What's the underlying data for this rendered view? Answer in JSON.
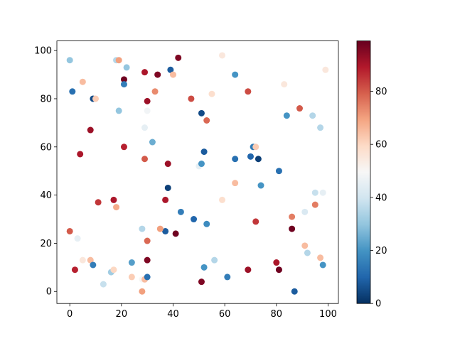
{
  "chart_data": {
    "type": "scatter",
    "title": "",
    "xlabel": "",
    "ylabel": "",
    "xlim": [
      -5,
      104
    ],
    "ylim": [
      -5,
      104
    ],
    "xticks": [
      0,
      20,
      40,
      60,
      80,
      100
    ],
    "yticks": [
      0,
      20,
      40,
      60,
      80,
      100
    ],
    "grid": false,
    "colormap": "RdBu_r",
    "colorbar": {
      "min": 0,
      "max": 99,
      "ticks": [
        0,
        20,
        40,
        60,
        80
      ]
    },
    "colormap_stops": [
      {
        "v": 0.0,
        "color": "#053061"
      },
      {
        "v": 0.1,
        "color": "#2166ac"
      },
      {
        "v": 0.2,
        "color": "#4393c3"
      },
      {
        "v": 0.3,
        "color": "#92c5de"
      },
      {
        "v": 0.4,
        "color": "#d1e5f0"
      },
      {
        "v": 0.5,
        "color": "#f7f7f7"
      },
      {
        "v": 0.6,
        "color": "#fddbc7"
      },
      {
        "v": 0.7,
        "color": "#f4a582"
      },
      {
        "v": 0.8,
        "color": "#d6604d"
      },
      {
        "v": 0.9,
        "color": "#b2182b"
      },
      {
        "v": 1.0,
        "color": "#67001f"
      }
    ],
    "points": [
      {
        "x": 0,
        "y": 96,
        "c": 30
      },
      {
        "x": 1,
        "y": 83,
        "c": 12
      },
      {
        "x": 5,
        "y": 87,
        "c": 65
      },
      {
        "x": 9,
        "y": 80,
        "c": 5
      },
      {
        "x": 10,
        "y": 80,
        "c": 62
      },
      {
        "x": 8,
        "y": 67,
        "c": 92
      },
      {
        "x": 4,
        "y": 57,
        "c": 90
      },
      {
        "x": 0,
        "y": 25,
        "c": 80
      },
      {
        "x": 3,
        "y": 22,
        "c": 45
      },
      {
        "x": 2,
        "y": 9,
        "c": 88
      },
      {
        "x": 5,
        "y": 13,
        "c": 55
      },
      {
        "x": 8,
        "y": 13,
        "c": 65
      },
      {
        "x": 9,
        "y": 11,
        "c": 15
      },
      {
        "x": 13,
        "y": 3,
        "c": 38
      },
      {
        "x": 16,
        "y": 8,
        "c": 32
      },
      {
        "x": 17,
        "y": 9,
        "c": 60
      },
      {
        "x": 11,
        "y": 37,
        "c": 85
      },
      {
        "x": 17,
        "y": 38,
        "c": 90
      },
      {
        "x": 18,
        "y": 35,
        "c": 68
      },
      {
        "x": 18,
        "y": 96,
        "c": 35
      },
      {
        "x": 19,
        "y": 96,
        "c": 70
      },
      {
        "x": 22,
        "y": 93,
        "c": 30
      },
      {
        "x": 21,
        "y": 88,
        "c": 98
      },
      {
        "x": 21,
        "y": 86,
        "c": 15
      },
      {
        "x": 19,
        "y": 75,
        "c": 30
      },
      {
        "x": 21,
        "y": 60,
        "c": 88
      },
      {
        "x": 29,
        "y": 91,
        "c": 90
      },
      {
        "x": 34,
        "y": 90,
        "c": 96
      },
      {
        "x": 30,
        "y": 79,
        "c": 92
      },
      {
        "x": 33,
        "y": 83,
        "c": 73
      },
      {
        "x": 30,
        "y": 75,
        "c": 48
      },
      {
        "x": 29,
        "y": 68,
        "c": 45
      },
      {
        "x": 32,
        "y": 62,
        "c": 25
      },
      {
        "x": 29,
        "y": 55,
        "c": 80
      },
      {
        "x": 39,
        "y": 92,
        "c": 8
      },
      {
        "x": 40,
        "y": 90,
        "c": 65
      },
      {
        "x": 42,
        "y": 97,
        "c": 96
      },
      {
        "x": 38,
        "y": 53,
        "c": 92
      },
      {
        "x": 38,
        "y": 43,
        "c": 3
      },
      {
        "x": 37,
        "y": 38,
        "c": 90
      },
      {
        "x": 43,
        "y": 33,
        "c": 15
      },
      {
        "x": 47,
        "y": 80,
        "c": 82
      },
      {
        "x": 51,
        "y": 74,
        "c": 5
      },
      {
        "x": 53,
        "y": 71,
        "c": 78
      },
      {
        "x": 55,
        "y": 82,
        "c": 58
      },
      {
        "x": 59,
        "y": 98,
        "c": 55
      },
      {
        "x": 52,
        "y": 58,
        "c": 8
      },
      {
        "x": 50,
        "y": 52,
        "c": 45
      },
      {
        "x": 51,
        "y": 53,
        "c": 20
      },
      {
        "x": 37,
        "y": 25,
        "c": 8
      },
      {
        "x": 41,
        "y": 24,
        "c": 98
      },
      {
        "x": 35,
        "y": 26,
        "c": 70
      },
      {
        "x": 28,
        "y": 26,
        "c": 35
      },
      {
        "x": 30,
        "y": 21,
        "c": 78
      },
      {
        "x": 24,
        "y": 12,
        "c": 22
      },
      {
        "x": 30,
        "y": 13,
        "c": 96
      },
      {
        "x": 24,
        "y": 6,
        "c": 62
      },
      {
        "x": 28,
        "y": 5,
        "c": 50
      },
      {
        "x": 29,
        "y": 5,
        "c": 65
      },
      {
        "x": 30,
        "y": 6,
        "c": 12
      },
      {
        "x": 28,
        "y": 0,
        "c": 70
      },
      {
        "x": 48,
        "y": 30,
        "c": 10
      },
      {
        "x": 53,
        "y": 28,
        "c": 18
      },
      {
        "x": 51,
        "y": 4,
        "c": 96
      },
      {
        "x": 52,
        "y": 10,
        "c": 20
      },
      {
        "x": 56,
        "y": 13,
        "c": 35
      },
      {
        "x": 61,
        "y": 6,
        "c": 15
      },
      {
        "x": 64,
        "y": 90,
        "c": 20
      },
      {
        "x": 69,
        "y": 83,
        "c": 82
      },
      {
        "x": 64,
        "y": 55,
        "c": 12
      },
      {
        "x": 70,
        "y": 56,
        "c": 10
      },
      {
        "x": 71,
        "y": 60,
        "c": 15
      },
      {
        "x": 72,
        "y": 60,
        "c": 62
      },
      {
        "x": 73,
        "y": 55,
        "c": 3
      },
      {
        "x": 74,
        "y": 44,
        "c": 20
      },
      {
        "x": 64,
        "y": 45,
        "c": 65
      },
      {
        "x": 59,
        "y": 38,
        "c": 58
      },
      {
        "x": 72,
        "y": 29,
        "c": 85
      },
      {
        "x": 69,
        "y": 9,
        "c": 92
      },
      {
        "x": 80,
        "y": 12,
        "c": 90
      },
      {
        "x": 81,
        "y": 9,
        "c": 98
      },
      {
        "x": 83,
        "y": 86,
        "c": 55
      },
      {
        "x": 84,
        "y": 73,
        "c": 20
      },
      {
        "x": 89,
        "y": 76,
        "c": 80
      },
      {
        "x": 81,
        "y": 50,
        "c": 12
      },
      {
        "x": 86,
        "y": 31,
        "c": 75
      },
      {
        "x": 86,
        "y": 26,
        "c": 98
      },
      {
        "x": 87,
        "y": 0,
        "c": 8
      },
      {
        "x": 91,
        "y": 33,
        "c": 42
      },
      {
        "x": 91,
        "y": 19,
        "c": 65
      },
      {
        "x": 92,
        "y": 16,
        "c": 35
      },
      {
        "x": 94,
        "y": 73,
        "c": 35
      },
      {
        "x": 97,
        "y": 68,
        "c": 35
      },
      {
        "x": 99,
        "y": 92,
        "c": 55
      },
      {
        "x": 95,
        "y": 41,
        "c": 38
      },
      {
        "x": 98,
        "y": 41,
        "c": 45
      },
      {
        "x": 95,
        "y": 36,
        "c": 75
      },
      {
        "x": 97,
        "y": 14,
        "c": 65
      },
      {
        "x": 98,
        "y": 11,
        "c": 20
      }
    ]
  }
}
